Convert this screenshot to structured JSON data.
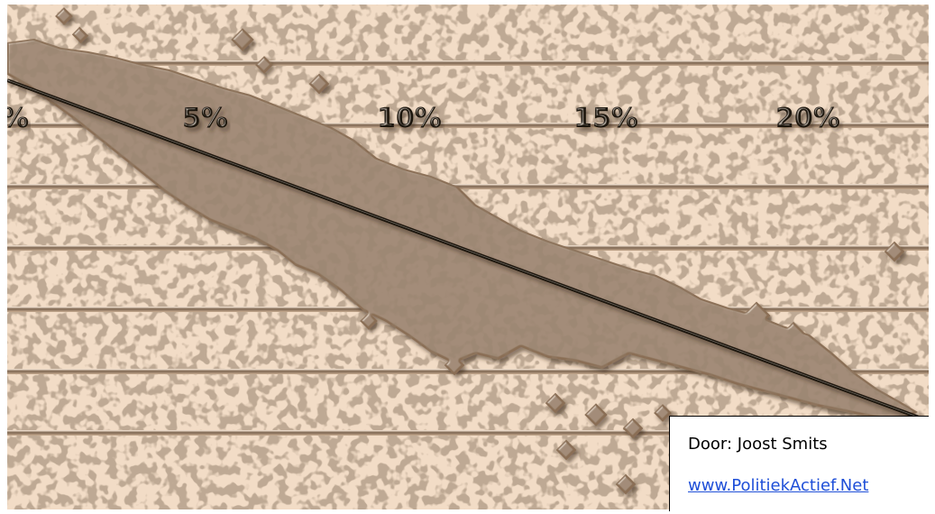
{
  "artwork": {
    "tick_labels": [
      "%",
      "5%",
      "10%",
      "15%",
      "20%"
    ],
    "colors": {
      "background": "#f2dcc6",
      "band": "#8a6e55",
      "gridline": "#7d6550",
      "trend_line": "#1e140c",
      "text": "#1e140c"
    }
  },
  "credit": {
    "author": "Door: Joost Smits",
    "link": "www.PolitiekActief.Net"
  }
}
